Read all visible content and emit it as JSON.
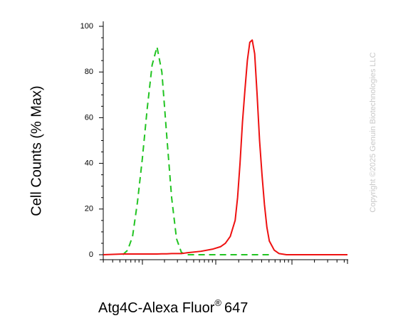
{
  "chart_data": {
    "type": "line",
    "ylabel": "Cell Counts (% Max)",
    "xlabel": {
      "main": "Atg4C-Alexa Fluor",
      "sup": "®",
      "rest": "647"
    },
    "watermark": "Copyright ©2025 Genuin Biotechnologies LLC",
    "x": [
      0,
      5,
      8,
      10,
      12,
      14,
      16,
      18,
      20,
      22,
      24,
      26,
      28,
      30,
      32,
      34,
      40,
      45,
      48,
      50,
      52,
      54,
      55,
      56,
      57,
      58,
      59,
      60,
      61,
      62,
      63,
      64,
      65,
      66,
      67,
      68,
      70,
      72,
      75,
      80,
      90,
      100
    ],
    "xlim": [
      0,
      100
    ],
    "ylim": [
      0,
      100
    ],
    "yticks": [
      0,
      20,
      40,
      60,
      80,
      100
    ],
    "series": [
      {
        "name": "green",
        "color": "#22c422",
        "dash": true,
        "values": [
          null,
          null,
          0,
          2,
          8,
          23,
          42,
          64,
          83,
          91,
          80,
          52,
          25,
          7,
          1,
          0,
          0,
          0,
          0,
          0,
          0,
          0,
          0,
          0,
          0,
          0,
          0,
          0,
          0,
          0,
          0,
          0,
          0,
          0,
          0,
          0,
          null,
          null,
          null,
          null,
          null,
          null
        ]
      },
      {
        "name": "red",
        "color": "#ee1111",
        "dash": false,
        "values": [
          0,
          0.2,
          0.3,
          0.3,
          0.3,
          0.3,
          0.3,
          0.3,
          0.3,
          0.3,
          0.4,
          0.4,
          0.5,
          0.5,
          0.5,
          0.8,
          1.5,
          2.5,
          3.5,
          5,
          8,
          15,
          25,
          40,
          58,
          72,
          85,
          93,
          94,
          88,
          70,
          50,
          35,
          22,
          12,
          6,
          2,
          0.5,
          0,
          0,
          0,
          0
        ]
      }
    ]
  }
}
